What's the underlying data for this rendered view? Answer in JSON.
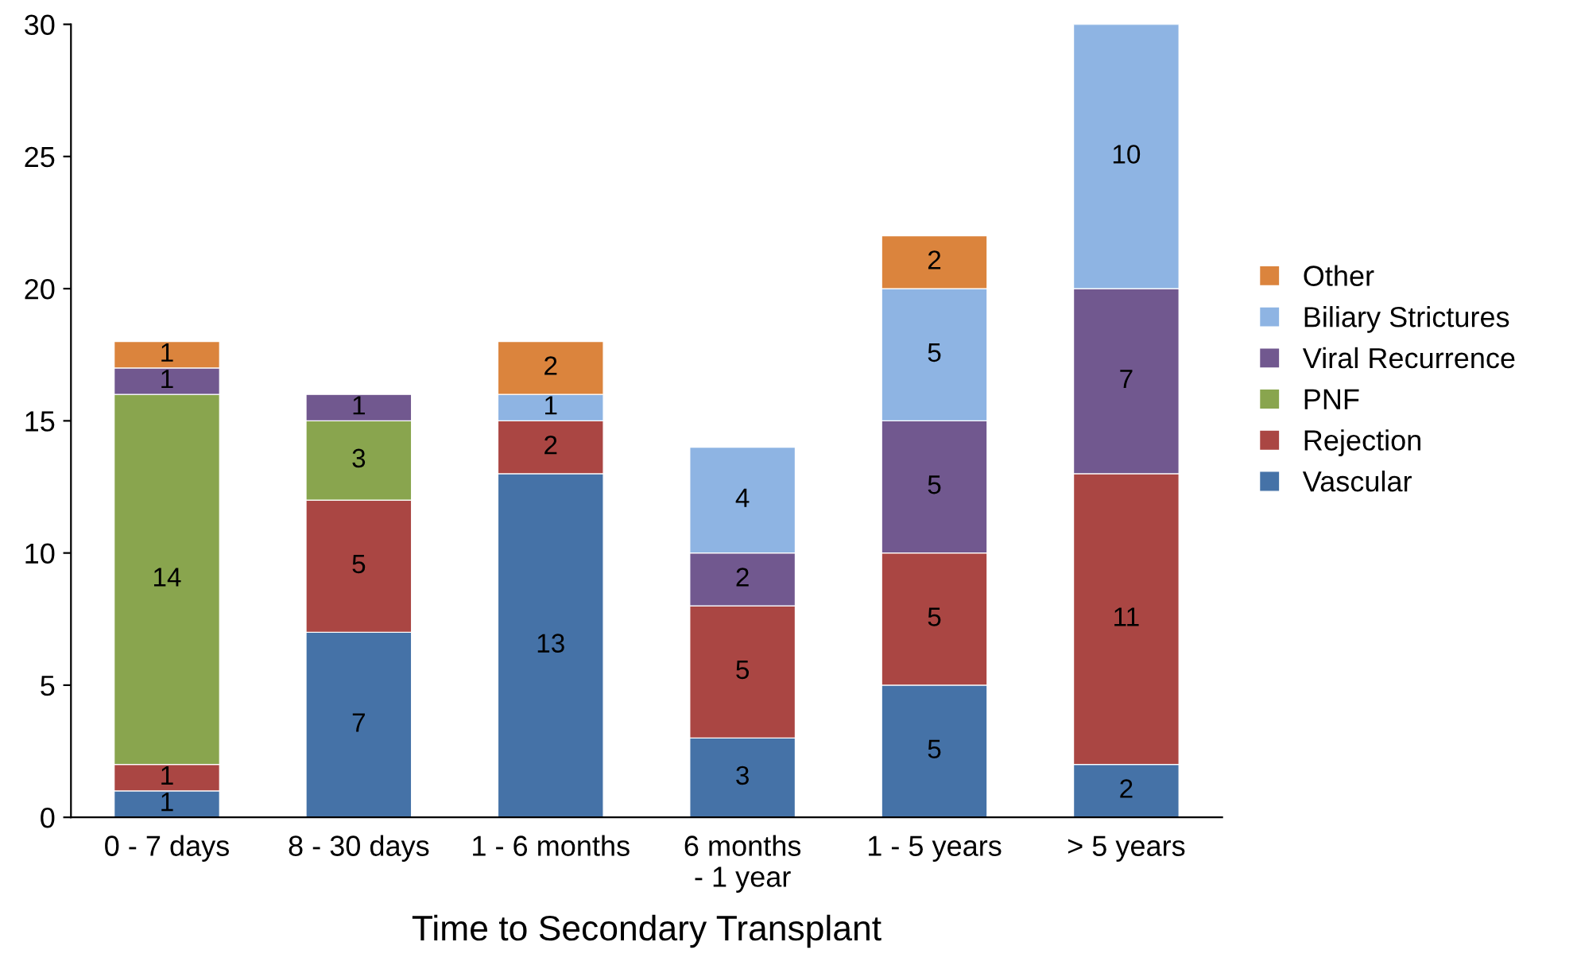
{
  "chart_data": {
    "type": "bar",
    "stacked": true,
    "xlabel": "Time to Secondary Transplant",
    "categories": [
      "0 - 7 days",
      "8 - 30 days",
      "1 - 6 months",
      "6 months\n- 1 year",
      "1 - 5 years",
      "> 5 years"
    ],
    "series": [
      {
        "name": "Vascular",
        "color": "#4572a7",
        "values": [
          1,
          7,
          13,
          3,
          5,
          2
        ]
      },
      {
        "name": "Rejection",
        "color": "#aa4643",
        "values": [
          1,
          5,
          2,
          5,
          5,
          11
        ]
      },
      {
        "name": "PNF",
        "color": "#89a54e",
        "values": [
          14,
          3,
          null,
          null,
          null,
          null
        ]
      },
      {
        "name": "Viral Recurrence",
        "color": "#71588f",
        "values": [
          1,
          1,
          null,
          2,
          5,
          7
        ]
      },
      {
        "name": "Biliary Strictures",
        "color": "#8eb4e3",
        "values": [
          null,
          null,
          1,
          4,
          5,
          10
        ]
      },
      {
        "name": "Other",
        "color": "#db843d",
        "values": [
          1,
          null,
          2,
          null,
          2,
          null
        ]
      }
    ],
    "ylim": [
      0,
      30
    ],
    "yticks": [
      0,
      5,
      10,
      15,
      20,
      25,
      30
    ],
    "grid": false,
    "legend": "right",
    "data_labels": true
  }
}
